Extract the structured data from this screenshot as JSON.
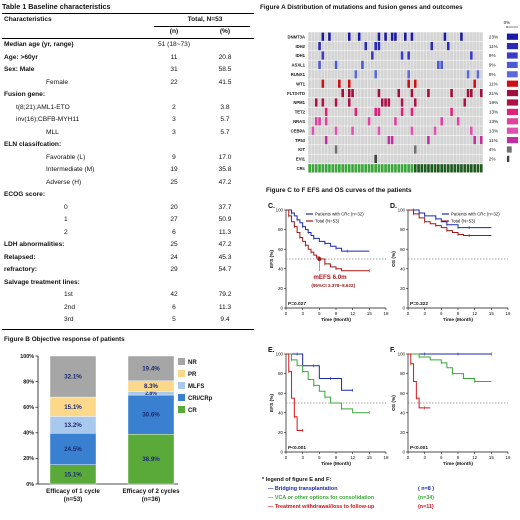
{
  "table1": {
    "title": "Table 1 Baseline characteristics",
    "header": {
      "col0": "Characteristics",
      "col1": "Total, N=53",
      "sub1": "(n)",
      "sub2": "(%)"
    },
    "rows": [
      {
        "label": "Median age (yr,  range)",
        "v1": "51  (18~73)",
        "v2": "",
        "bold": true,
        "indent": 0
      },
      {
        "label": "Age:  >60yr",
        "v1": "11",
        "v2": "20.8",
        "bold": true,
        "indent": 0
      },
      {
        "label": "Sex:  Male",
        "v1": "31",
        "v2": "58.5",
        "bold": true,
        "indent": 0
      },
      {
        "label": "Female",
        "v1": "22",
        "v2": "41.5",
        "bold": false,
        "indent": 2
      },
      {
        "label": "Fusion gene:",
        "v1": "",
        "v2": "",
        "bold": true,
        "indent": 0
      },
      {
        "label": "t(8;21);AML1-ETO",
        "v1": "2",
        "v2": "3.8",
        "bold": false,
        "indent": 1
      },
      {
        "label": "inv(16);CBFB-MYH11",
        "v1": "3",
        "v2": "5.7",
        "bold": false,
        "indent": 1
      },
      {
        "label": "MLL",
        "v1": "3",
        "v2": "5.7",
        "bold": false,
        "indent": 2
      },
      {
        "label": "ELN classifcation:",
        "v1": "",
        "v2": "",
        "bold": true,
        "indent": 0
      },
      {
        "label": "Favorable (L)",
        "v1": "9",
        "v2": "17.0",
        "bold": false,
        "indent": 2
      },
      {
        "label": "Intermediate (M)",
        "v1": "19",
        "v2": "35.8",
        "bold": false,
        "indent": 2
      },
      {
        "label": "Adverse (H)",
        "v1": "25",
        "v2": "47.2",
        "bold": false,
        "indent": 2
      },
      {
        "label": "ECOG score:",
        "v1": "",
        "v2": "",
        "bold": true,
        "indent": 0
      },
      {
        "label": "0",
        "v1": "20",
        "v2": "37.7",
        "bold": false,
        "indent": 3
      },
      {
        "label": "1",
        "v1": "27",
        "v2": "50.9",
        "bold": false,
        "indent": 3
      },
      {
        "label": "2",
        "v1": "6",
        "v2": "11.3",
        "bold": false,
        "indent": 3
      },
      {
        "label": "LDH abnormalities:",
        "v1": "25",
        "v2": "47.2",
        "bold": true,
        "indent": 0
      },
      {
        "label": "Relapsed:",
        "v1": "24",
        "v2": "45.3",
        "bold": true,
        "indent": 0
      },
      {
        "label": "refractory:",
        "v1": "29",
        "v2": "54.7",
        "bold": true,
        "indent": 0
      },
      {
        "label": "Salvage treatment lines:",
        "v1": "",
        "v2": "",
        "bold": true,
        "indent": 0
      },
      {
        "label": "1st",
        "v1": "42",
        "v2": "79.2",
        "bold": false,
        "indent": 3
      },
      {
        "label": "2nd",
        "v1": "6",
        "v2": "11.3",
        "bold": false,
        "indent": 3
      },
      {
        "label": "3rd",
        "v1": "5",
        "v2": "9.4",
        "bold": false,
        "indent": 3
      }
    ]
  },
  "chart_data": [
    {
      "type": "heatmap",
      "title": "Figure A  Distribution of mutations and fusion genes and outcomes",
      "genes": [
        "DNMT3A",
        "IDH2",
        "IDH1",
        "ASXL1",
        "RUNX1",
        "WT1",
        "FLT3-ITD",
        "NPM1",
        "TET2",
        "NRAS",
        "CEBPA",
        "TP53",
        "KIT",
        "EVI1",
        "CRc"
      ],
      "percent_labels": [
        "23%",
        "11%",
        "9%",
        "9%",
        "9%",
        "11%",
        "21%",
        "19%",
        "13%",
        "13%",
        "13%",
        "11%",
        "4%",
        "2%"
      ],
      "percent_values": [
        23,
        11,
        9,
        9,
        9,
        11,
        21,
        19,
        13,
        13,
        13,
        11,
        4,
        2
      ],
      "percent_axis": [
        "0%",
        "15%",
        "30%"
      ],
      "xlim": [
        0,
        30
      ],
      "colors": {
        "DNMT3A": "#1a1aa6",
        "IDH2": "#2a2ab8",
        "IDH1": "#3b3bc8",
        "ASXL1": "#4a5ad0",
        "RUNX1": "#5a6ad8",
        "WT1": "#d01010",
        "FLT3-ITD": "#a0103a",
        "NPM1": "#b0104a",
        "TET2": "#e0207a",
        "NRAS": "#e040a0",
        "CEBPA": "#e050b0",
        "TP53": "#c030a0",
        "KIT": "#707070",
        "EVI1": "#404040",
        "CRc": "#3aa83a"
      }
    },
    {
      "type": "bar",
      "title": "Figure B  Objective response of patients",
      "categories": [
        "Efficacy of 1 cycle\n(n=53)",
        "Efficacy of 2 cycles\n(n=36)"
      ],
      "category_line1": [
        "Efficacy of 1 cycle",
        "Efficacy of 2 cycles"
      ],
      "category_line2": [
        "(n=53)",
        "(n=36)"
      ],
      "stacked": true,
      "ylim": [
        0,
        100
      ],
      "yticks": [
        "0%",
        "20%",
        "40%",
        "60%",
        "80%",
        "100%"
      ],
      "series": [
        {
          "name": "CR",
          "values": [
            15.1,
            38.9
          ],
          "labels": [
            "15.1%",
            "38.9%"
          ],
          "color": "#5aaa3a"
        },
        {
          "name": "CRi/CRp",
          "values": [
            24.5,
            30.6
          ],
          "labels": [
            "24.5%",
            "30.6%"
          ],
          "color": "#3a80d0"
        },
        {
          "name": "MLFS",
          "values": [
            13.2,
            2.8
          ],
          "labels": [
            "13.2%",
            "2.8%"
          ],
          "color": "#a9c8ee"
        },
        {
          "name": "PR",
          "values": [
            15.1,
            8.3
          ],
          "labels": [
            "15.1%",
            "8.3%"
          ],
          "color": "#fbd88a"
        },
        {
          "name": "NR",
          "values": [
            32.1,
            19.4
          ],
          "labels": [
            "32.1%",
            "19.4%"
          ],
          "color": "#a6a6a6"
        }
      ]
    },
    {
      "type": "line",
      "title": "Figure C to F   EFS and OS curves of the patients",
      "panels": [
        {
          "letter": "C.",
          "ylabel": "EFS (%)",
          "xlabel": "Time (Month)",
          "xticks": [
            0,
            3,
            6,
            9,
            12,
            15,
            18
          ],
          "yticks": [
            0,
            20,
            40,
            60,
            80,
            100
          ],
          "xlim": [
            0,
            18
          ],
          "ylim": [
            0,
            100
          ],
          "pvalue": "P=0.027",
          "legend": [
            "Patients with CRc (n=32)",
            "Total  (N=53)"
          ],
          "annot1": "mEFS 6.0m",
          "annot2": "(95%CI 3.378~8.622)",
          "series": [
            {
              "name": "Patients with CRc (n=32)",
              "color": "#1a2aa8",
              "x": [
                0,
                1,
                1.5,
                2,
                2.5,
                3,
                3.5,
                4,
                4.5,
                5,
                6,
                7,
                8,
                9,
                10,
                11,
                15
              ],
              "y": [
                100,
                97,
                94,
                90,
                87,
                83,
                80,
                77,
                74,
                71,
                68,
                66,
                63,
                61,
                58,
                58,
                58
              ]
            },
            {
              "name": "Total  (N=53)",
              "color": "#a01818",
              "x": [
                0,
                0.5,
                1,
                1.5,
                2,
                2.5,
                3,
                3.5,
                4,
                4.5,
                5,
                5.5,
                6,
                7,
                8,
                9,
                10,
                15
              ],
              "y": [
                100,
                94,
                88,
                83,
                77,
                72,
                68,
                64,
                60,
                57,
                54,
                52,
                50,
                45,
                42,
                40,
                38,
                38
              ]
            }
          ]
        },
        {
          "letter": "D.",
          "ylabel": "OS (%)",
          "xlabel": "Time (Month)",
          "xticks": [
            0,
            3,
            6,
            9,
            12,
            15,
            18
          ],
          "yticks": [
            0,
            20,
            40,
            60,
            80,
            100
          ],
          "xlim": [
            0,
            18
          ],
          "ylim": [
            0,
            100
          ],
          "pvalue": "P=0.322",
          "legend": [
            "Patients with CRc (n=32)",
            "Total  (N=53)"
          ],
          "series": [
            {
              "name": "Patients with CRc (n=32)",
              "color": "#1a2aa8",
              "x": [
                0,
                1,
                2,
                3,
                4,
                5,
                6,
                7,
                8,
                9,
                10,
                11,
                15
              ],
              "y": [
                100,
                100,
                97,
                94,
                94,
                91,
                88,
                85,
                85,
                82,
                82,
                82,
                82
              ]
            },
            {
              "name": "Total  (N=53)",
              "color": "#a01818",
              "x": [
                0,
                1,
                2,
                3,
                4,
                5,
                6,
                7,
                8,
                9,
                10,
                11,
                15
              ],
              "y": [
                100,
                96,
                92,
                88,
                86,
                84,
                82,
                79,
                77,
                75,
                74,
                74,
                74
              ]
            }
          ]
        },
        {
          "letter": "E.",
          "ylabel": "EFS (%)",
          "xlabel": "Time (Month)",
          "xticks": [
            0,
            3,
            6,
            9,
            12,
            15,
            18
          ],
          "yticks": [
            0,
            20,
            40,
            60,
            80,
            100
          ],
          "xlim": [
            0,
            18
          ],
          "ylim": [
            0,
            100
          ],
          "pvalue": "P<0.001",
          "series": [
            {
              "name": "Bridging transplantation",
              "color": "#1a2aa8",
              "x": [
                0,
                2,
                3,
                5,
                6,
                8,
                10,
                12
              ],
              "y": [
                100,
                100,
                88,
                88,
                75,
                75,
                63,
                63
              ]
            },
            {
              "name": "VCA or other options for consolidation",
              "color": "#3aa83a",
              "x": [
                0,
                1,
                2,
                3,
                4,
                5,
                6,
                7,
                8,
                10,
                12,
                15
              ],
              "y": [
                100,
                94,
                88,
                82,
                74,
                68,
                62,
                56,
                50,
                44,
                40,
                40
              ]
            },
            {
              "name": "Treatment withdrawal/loss to follow-up",
              "color": "#d01818",
              "x": [
                0,
                0.5,
                1,
                1.5,
                2,
                3
              ],
              "y": [
                100,
                82,
                55,
                36,
                22,
                22
              ]
            }
          ]
        },
        {
          "letter": "F.",
          "ylabel": "OS (%)",
          "xlabel": "Time (Month)",
          "xticks": [
            0,
            3,
            6,
            9,
            12,
            15,
            18
          ],
          "yticks": [
            0,
            20,
            40,
            60,
            80,
            100
          ],
          "xlim": [
            0,
            18
          ],
          "ylim": [
            0,
            100
          ],
          "pvalue": "P<0.001",
          "series": [
            {
              "name": "Bridging transplantation",
              "color": "#1a2aa8",
              "x": [
                0,
                3,
                6,
                9,
                12,
                15
              ],
              "y": [
                100,
                100,
                100,
                100,
                100,
                100
              ]
            },
            {
              "name": "VCA or other options for consolidation",
              "color": "#3aa83a",
              "x": [
                0,
                2,
                4,
                6,
                7,
                8,
                10,
                12,
                15
              ],
              "y": [
                100,
                97,
                94,
                91,
                86,
                80,
                75,
                72,
                72
              ]
            },
            {
              "name": "Treatment withdrawal/loss to follow-up",
              "color": "#d01818",
              "x": [
                0,
                0.5,
                1,
                1.5,
                2,
                3,
                4
              ],
              "y": [
                100,
                90,
                72,
                55,
                45,
                45,
                45
              ]
            }
          ]
        }
      ]
    }
  ],
  "legendEF": {
    "title": "* legend of figure E and F:",
    "items": [
      {
        "name": "Bridging transplantation",
        "count": "( n=8 )",
        "color": "#1a2aa8"
      },
      {
        "name": "VCA or other options for consolidation",
        "count": "(n=34)",
        "color": "#3aa83a"
      },
      {
        "name": "Treatment withdrawal/loss to follow-up",
        "count": "(n=11)",
        "color": "#d01818"
      }
    ]
  }
}
